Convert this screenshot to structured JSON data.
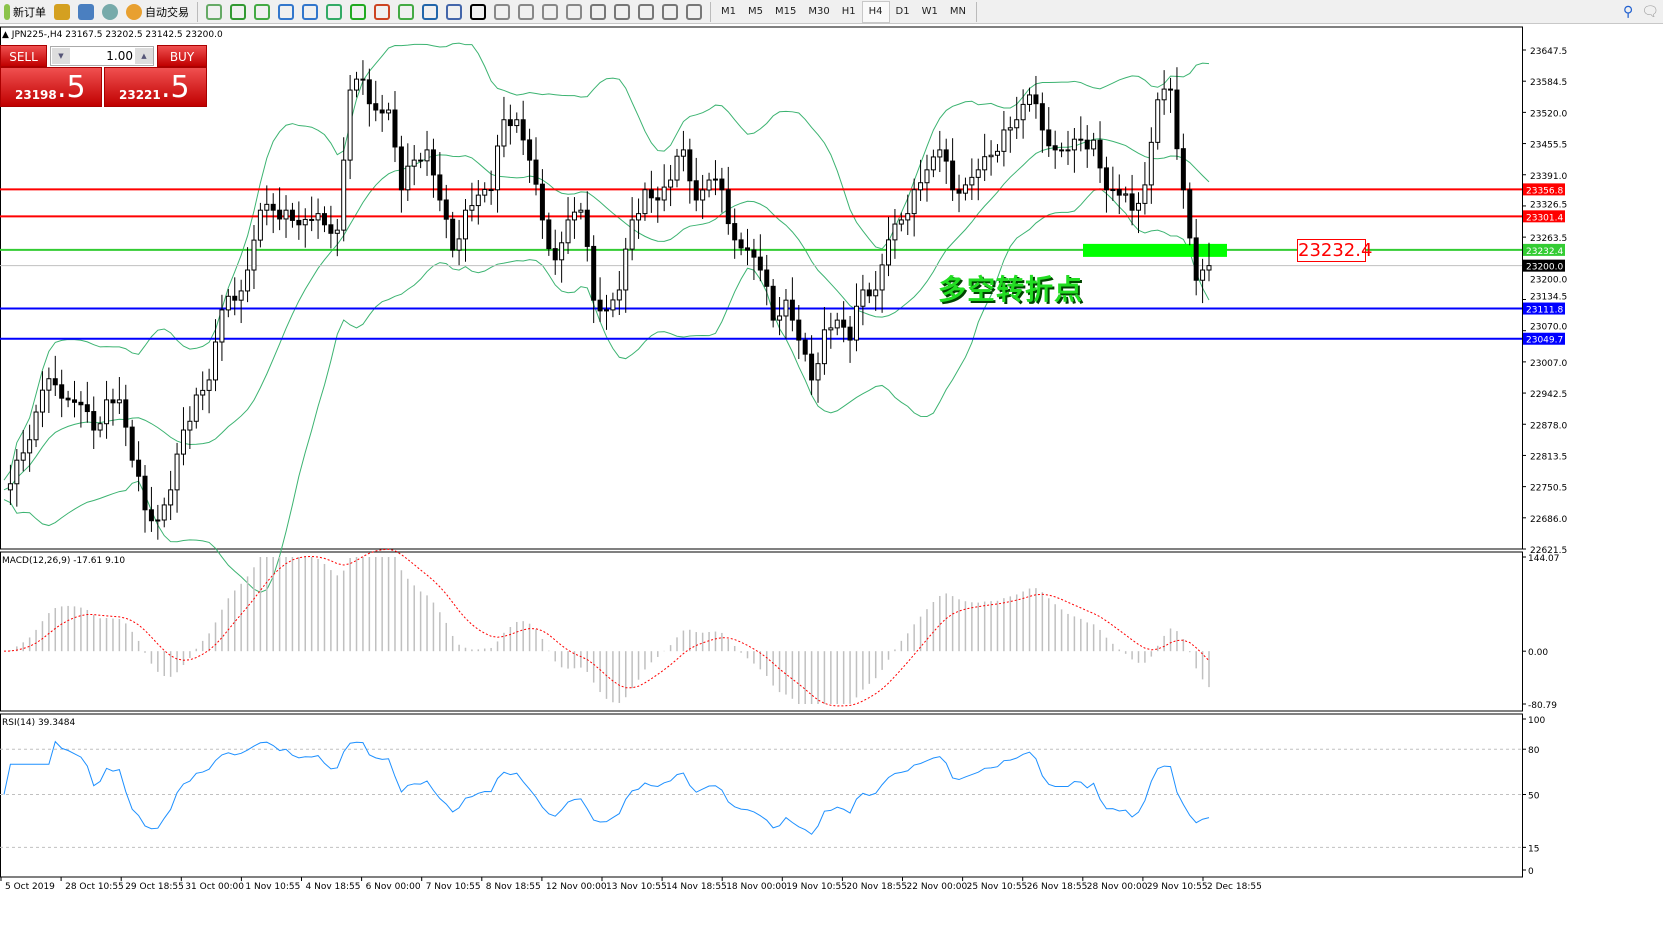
{
  "toolbar": {
    "new_order": "新订单",
    "auto_trading": "自动交易",
    "icons": [
      "new-order-icon",
      "market-watch-icon",
      "navigator-icon",
      "signals-icon",
      "auto-trading-icon",
      "bar-chart-icon",
      "candlestick-icon",
      "line-chart-icon",
      "zoom-in-icon",
      "zoom-out-icon",
      "tile-windows-icon",
      "auto-scroll-icon",
      "chart-shift-icon",
      "indicators-icon",
      "periods-icon",
      "templates-icon",
      "cursor-icon",
      "crosshair-icon",
      "vertical-line-icon",
      "horizontal-line-icon",
      "trendline-icon",
      "equidistant-channel-icon",
      "fibonacci-icon",
      "text-icon",
      "text-label-icon",
      "arrows-icon"
    ],
    "timeframes": [
      "M1",
      "M5",
      "M15",
      "M30",
      "H1",
      "H4",
      "D1",
      "W1",
      "MN"
    ],
    "active_timeframe": "H4"
  },
  "chart": {
    "symbol_line": "JPN225-,H4  23167.5 23202.5 23142.5 23200.0",
    "trade_panel": {
      "sell": "SELL",
      "buy": "BUY",
      "lot": "1.00",
      "sell_price_main": "23198",
      "sell_price_big": ".5",
      "buy_price_main": "23221",
      "buy_price_big": ".5"
    },
    "annotation": "多空转折点",
    "annotation_price": "23232.4",
    "price_axis": [
      "23647.5",
      "23584.5",
      "23520.0",
      "23455.5",
      "23391.0",
      "23326.5",
      "23263.5",
      "23200.0",
      "23134.5",
      "23070.0",
      "23007.0",
      "22942.5",
      "22878.0",
      "22813.5",
      "22750.5",
      "22686.0",
      "22621.5"
    ],
    "price_range": [
      22621.5,
      23647.5
    ],
    "hlines": [
      {
        "price": 23356.8,
        "label": "23356.8",
        "color": "#ff0000"
      },
      {
        "price": 23301.4,
        "label": "23301.4",
        "color": "#ff0000"
      },
      {
        "price": 23232.4,
        "label": "23232.4",
        "color": "#33cc33"
      },
      {
        "price": 23111.8,
        "label": "23111.8",
        "color": "#0000ff"
      },
      {
        "price": 23049.7,
        "label": "23049.7",
        "color": "#0000ff"
      }
    ],
    "bid": {
      "price": 23200.0,
      "label": "23200.0"
    },
    "closes": [
      22739,
      22800,
      22842,
      22944,
      22955,
      22924,
      22914,
      22862,
      22924,
      22924,
      22800,
      22698,
      22677,
      22739,
      22862,
      22934,
      22965,
      23109,
      23129,
      23191,
      23314,
      23314,
      23314,
      23284,
      23294,
      23284,
      23273,
      23561,
      23582,
      23520,
      23520,
      23356,
      23417,
      23438,
      23335,
      23232,
      23314,
      23345,
      23356,
      23500,
      23500,
      23417,
      23294,
      23212,
      23294,
      23314,
      23129,
      23109,
      23150,
      23294,
      23356,
      23335,
      23376,
      23438,
      23335,
      23376,
      23356,
      23253,
      23232,
      23191,
      23088,
      23129,
      23047,
      22965,
      23068,
      23088,
      23047,
      23150,
      23150,
      23253,
      23294,
      23356,
      23397,
      23438,
      23356,
      23366,
      23397,
      23427,
      23479,
      23500,
      23551,
      23479,
      23438,
      23438,
      23458,
      23458,
      23356,
      23345,
      23314,
      23366,
      23541,
      23561,
      23356,
      23170,
      23200
    ],
    "colors": {
      "bands": "#3cb371",
      "macd_hist": "#c0c0c0",
      "macd_signal": "#ff0000",
      "rsi": "#1e90ff",
      "box": "#00ff00"
    }
  },
  "macd": {
    "label": "MACD(12,26,9) -17.61 9.10",
    "axis": [
      "144.07",
      "0.00",
      "-80.79"
    ],
    "range": [
      -80.79,
      144.07
    ]
  },
  "rsi": {
    "label": "RSI(14) 39.3484",
    "axis": [
      "100",
      "80",
      "50",
      "15",
      "0"
    ],
    "levels": [
      80,
      50,
      15
    ]
  },
  "time_axis": [
    "5 Oct 2019",
    "28 Oct 10:55",
    "29 Oct 18:55",
    "31 Oct 00:00",
    "1 Nov 10:55",
    "4 Nov 18:55",
    "6 Nov 00:00",
    "7 Nov 10:55",
    "8 Nov 18:55",
    "12 Nov 00:00",
    "13 Nov 10:55",
    "14 Nov 18:55",
    "18 Nov 00:00",
    "19 Nov 10:55",
    "20 Nov 18:55",
    "22 Nov 00:00",
    "25 Nov 10:55",
    "26 Nov 18:55",
    "28 Nov 00:00",
    "29 Nov 10:55",
    "2 Dec 18:55"
  ]
}
